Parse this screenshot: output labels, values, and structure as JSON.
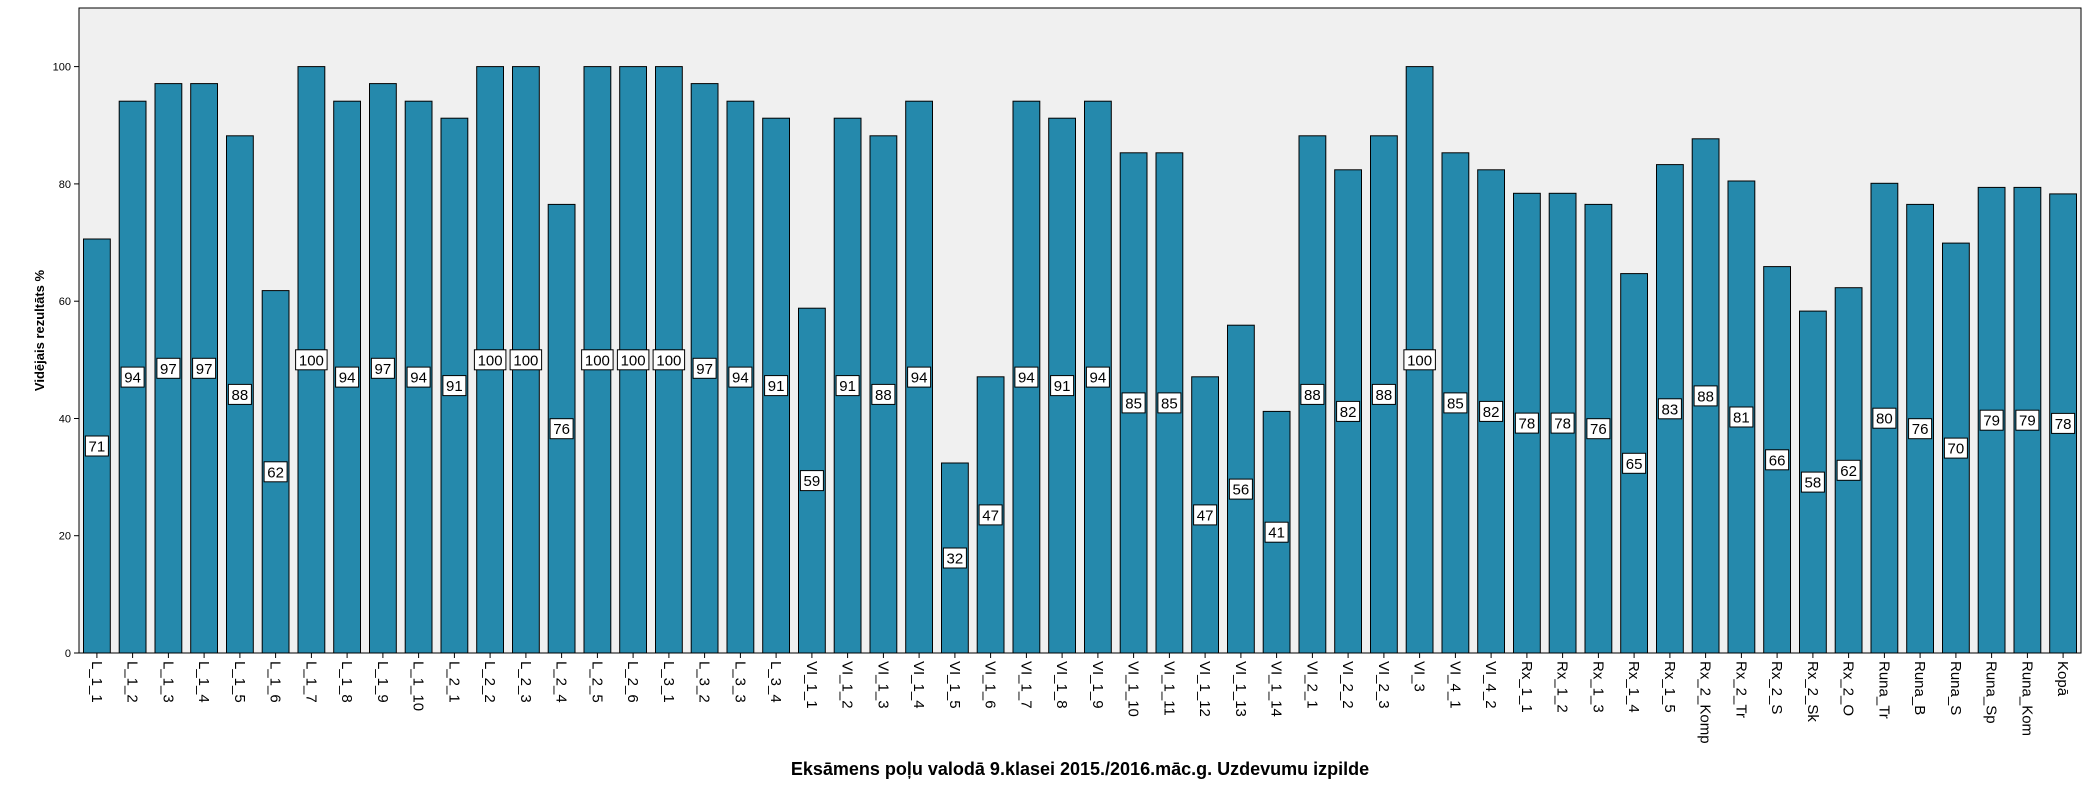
{
  "chart_data": {
    "type": "bar",
    "title": "",
    "xlabel": "Eksāmens poļu valodā 9.klasei 2015./2016.māc.g. Uzdevumu izpilde",
    "ylabel": "Vidējais rezultāts %",
    "ylim": [
      0,
      110
    ],
    "yticks": [
      0,
      20,
      40,
      60,
      80,
      100
    ],
    "grid": false,
    "legend": "none",
    "colors": {
      "bar": "#2589AC",
      "bar_stroke": "#000000",
      "plot_bg": "#F0F0F0",
      "label_bg": "#FFFFFF"
    },
    "categories": [
      "L_1_1",
      "L_1_2",
      "L_1_3",
      "L_1_4",
      "L_1_5",
      "L_1_6",
      "L_1_7",
      "L_1_8",
      "L_1_9",
      "L_1_10",
      "L_2_1",
      "L_2_2",
      "L_2_3",
      "L_2_4",
      "L_2_5",
      "L_2_6",
      "L_3_1",
      "L_3_2",
      "L_3_3",
      "L_3_4",
      "VI_1_1",
      "VI_1_2",
      "VI_1_3",
      "VI_1_4",
      "VI_1_5",
      "VI_1_6",
      "VI_1_7",
      "VI_1_8",
      "VI_1_9",
      "VI_1_10",
      "VI_1_11",
      "VI_1_12",
      "VI_1_13",
      "VI_1_14",
      "VI_2_1",
      "VI_2_2",
      "VI_2_3",
      "VI_3",
      "VI_4_1",
      "VI_4_2",
      "Rx_1_1",
      "Rx_1_2",
      "Rx_1_3",
      "Rx_1_4",
      "Rx_1_5",
      "Rx_2_Komp",
      "Rx_2_Tr",
      "Rx_2_S",
      "Rx_2_Sk",
      "Rx_2_O",
      "Runa_Tr",
      "Runa_B",
      "Runa_S",
      "Runa_Sp",
      "Runa_Kom",
      "Kopā"
    ],
    "values": [
      70.6,
      94.1,
      97.1,
      97.1,
      88.2,
      61.8,
      100,
      94.1,
      97.1,
      94.1,
      91.2,
      100,
      100,
      76.5,
      100,
      100,
      100,
      97.1,
      94.1,
      91.2,
      58.8,
      91.2,
      88.2,
      94.1,
      32.4,
      47.1,
      94.1,
      91.2,
      94.1,
      85.3,
      85.3,
      47.1,
      55.9,
      41.2,
      88.2,
      82.4,
      88.2,
      100,
      85.3,
      82.4,
      78.4,
      78.4,
      76.5,
      64.7,
      83.3,
      87.7,
      80.5,
      65.9,
      58.3,
      62.3,
      80.1,
      76.5,
      69.9,
      79.4,
      79.4,
      78.3
    ],
    "data_labels": [
      "71",
      "94",
      "97",
      "97",
      "88",
      "62",
      "100",
      "94",
      "97",
      "94",
      "91",
      "100",
      "100",
      "76",
      "100",
      "100",
      "100",
      "97",
      "94",
      "91",
      "59",
      "91",
      "88",
      "94",
      "32",
      "47",
      "94",
      "91",
      "94",
      "85",
      "85",
      "47",
      "56",
      "41",
      "88",
      "82",
      "88",
      "100",
      "85",
      "82",
      "78",
      "78",
      "76",
      "65",
      "83",
      "88",
      "81",
      "66",
      "58",
      "62",
      "80",
      "76",
      "70",
      "79",
      "79",
      "78"
    ]
  }
}
